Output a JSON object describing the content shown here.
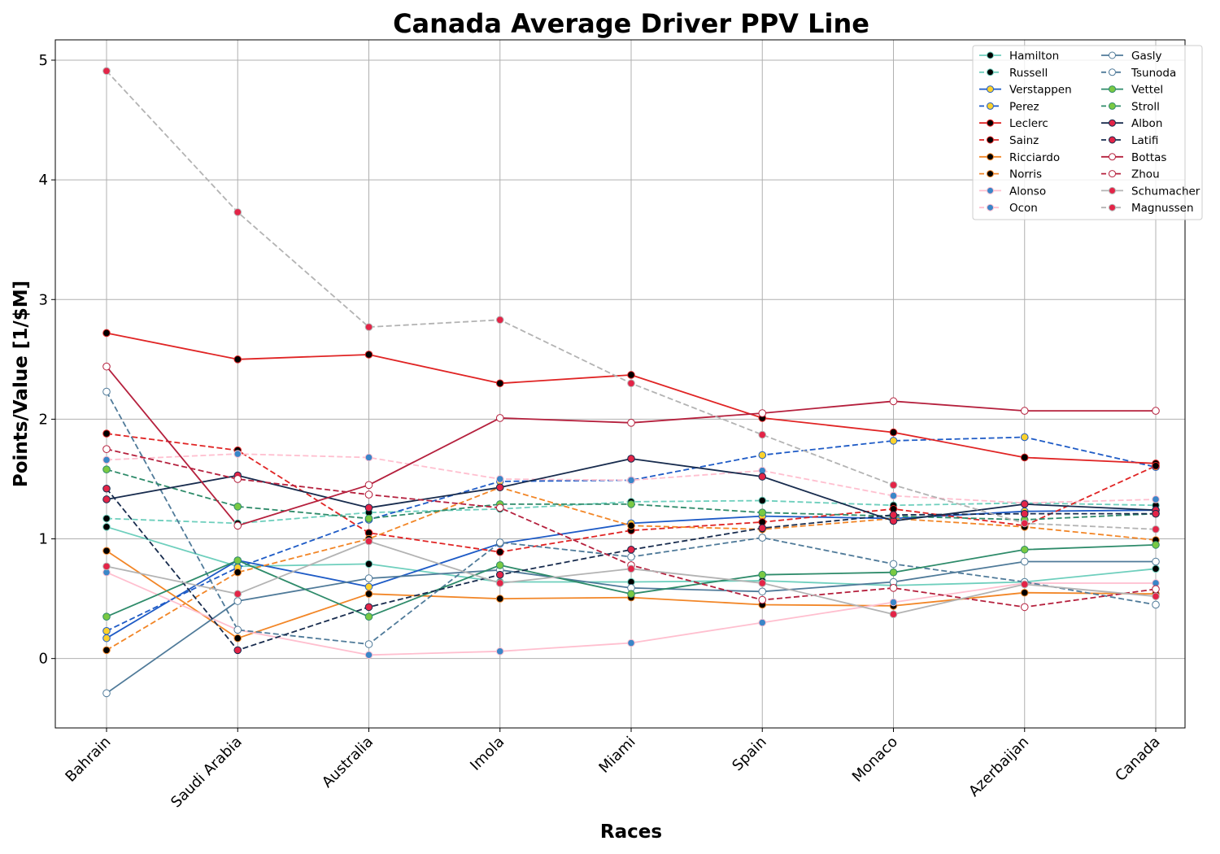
{
  "chart_data": {
    "type": "line",
    "title": "Canada Average Driver PPV Line",
    "xlabel": "Races",
    "ylabel": "Points/Value [1/$M]",
    "categories": [
      "Bahrain",
      "Saudi Arabia",
      "Australia",
      "Imola",
      "Miami",
      "Spain",
      "Monaco",
      "Azerbaijan",
      "Canada"
    ],
    "ylim": [
      -0.58,
      5.17
    ],
    "yticks": [
      0,
      1,
      2,
      3,
      4,
      5
    ],
    "grid": true,
    "legend_position": "top-right",
    "series": [
      {
        "name": "Hamilton",
        "color": "#6ecfbd",
        "marker_fill": "#000000",
        "dash": false,
        "values": [
          1.1,
          0.77,
          0.79,
          0.64,
          0.64,
          0.65,
          0.61,
          0.64,
          0.75
        ]
      },
      {
        "name": "Russell",
        "color": "#6ecfbd",
        "marker_fill": "#000000",
        "dash": true,
        "values": [
          1.17,
          1.13,
          1.22,
          1.25,
          1.31,
          1.32,
          1.28,
          1.3,
          1.28
        ]
      },
      {
        "name": "Verstappen",
        "color": "#1e5bc6",
        "marker_fill": "#fcd12c",
        "dash": false,
        "values": [
          0.17,
          0.82,
          0.6,
          0.96,
          1.13,
          1.19,
          1.17,
          1.23,
          1.24
        ]
      },
      {
        "name": "Perez",
        "color": "#1e5bc6",
        "marker_fill": "#fcd12c",
        "dash": true,
        "values": [
          0.23,
          0.76,
          1.16,
          1.48,
          1.49,
          1.7,
          1.82,
          1.85,
          1.6
        ]
      },
      {
        "name": "Leclerc",
        "color": "#e02424",
        "marker_fill": "#000000",
        "dash": false,
        "values": [
          2.72,
          2.5,
          2.54,
          2.3,
          2.37,
          2.01,
          1.89,
          1.68,
          1.63
        ]
      },
      {
        "name": "Sainz",
        "color": "#e02424",
        "marker_fill": "#000000",
        "dash": true,
        "values": [
          1.88,
          1.74,
          1.05,
          0.89,
          1.07,
          1.14,
          1.25,
          1.11,
          1.61
        ]
      },
      {
        "name": "Ricciardo",
        "color": "#f28627",
        "marker_fill": "#000000",
        "dash": false,
        "values": [
          0.9,
          0.17,
          0.54,
          0.5,
          0.51,
          0.45,
          0.44,
          0.55,
          0.54
        ]
      },
      {
        "name": "Norris",
        "color": "#f28627",
        "marker_fill": "#000000",
        "dash": true,
        "values": [
          0.07,
          0.72,
          1.0,
          1.43,
          1.11,
          1.08,
          1.17,
          1.1,
          0.99
        ]
      },
      {
        "name": "Alonso",
        "color": "#ffbfcf",
        "marker_fill": "#3a86c8",
        "dash": false,
        "values": [
          0.72,
          0.24,
          0.03,
          0.06,
          0.13,
          0.3,
          0.47,
          0.63,
          0.63
        ]
      },
      {
        "name": "Ocon",
        "color": "#ffbfcf",
        "marker_fill": "#3a86c8",
        "dash": true,
        "values": [
          1.66,
          1.71,
          1.68,
          1.5,
          1.49,
          1.57,
          1.36,
          1.3,
          1.33
        ]
      },
      {
        "name": "Gasly",
        "color": "#4f7a99",
        "marker_fill": "#ffffff",
        "dash": false,
        "values": [
          -0.29,
          0.48,
          0.67,
          0.74,
          0.59,
          0.56,
          0.64,
          0.81,
          0.81
        ]
      },
      {
        "name": "Tsunoda",
        "color": "#4f7a99",
        "marker_fill": "#ffffff",
        "dash": true,
        "values": [
          2.23,
          0.24,
          0.12,
          0.97,
          0.85,
          1.01,
          0.79,
          0.64,
          0.45
        ]
      },
      {
        "name": "Vettel",
        "color": "#2e8b6a",
        "marker_fill": "#7ac943",
        "dash": false,
        "values": [
          0.35,
          0.82,
          0.35,
          0.78,
          0.54,
          0.7,
          0.72,
          0.91,
          0.95
        ]
      },
      {
        "name": "Stroll",
        "color": "#2e8b6a",
        "marker_fill": "#7ac943",
        "dash": true,
        "values": [
          1.58,
          1.27,
          1.17,
          1.29,
          1.29,
          1.22,
          1.19,
          1.16,
          1.21
        ]
      },
      {
        "name": "Albon",
        "color": "#182c4e",
        "marker_fill": "#e32447",
        "dash": false,
        "values": [
          1.33,
          1.53,
          1.26,
          1.43,
          1.67,
          1.52,
          1.15,
          1.29,
          1.24
        ]
      },
      {
        "name": "Latifi",
        "color": "#182c4e",
        "marker_fill": "#e32447",
        "dash": true,
        "values": [
          1.42,
          0.07,
          0.43,
          0.7,
          0.91,
          1.09,
          1.2,
          1.21,
          1.21
        ]
      },
      {
        "name": "Bottas",
        "color": "#b5203d",
        "marker_fill": "#ffffff",
        "dash": false,
        "values": [
          2.44,
          1.11,
          1.45,
          2.01,
          1.97,
          2.05,
          2.15,
          2.07,
          2.07
        ]
      },
      {
        "name": "Zhou",
        "color": "#b5203d",
        "marker_fill": "#ffffff",
        "dash": true,
        "values": [
          1.75,
          1.5,
          1.37,
          1.26,
          0.78,
          0.49,
          0.59,
          0.43,
          0.58
        ]
      },
      {
        "name": "Schumacher",
        "color": "#b3b3b3",
        "marker_fill": "#e32447",
        "dash": false,
        "values": [
          0.77,
          0.54,
          0.98,
          0.63,
          0.75,
          0.63,
          0.37,
          0.62,
          0.52
        ]
      },
      {
        "name": "Magnussen",
        "color": "#b3b3b3",
        "marker_fill": "#e32447",
        "dash": true,
        "values": [
          4.91,
          3.73,
          2.77,
          2.83,
          2.3,
          1.87,
          1.45,
          1.13,
          1.08
        ]
      }
    ]
  }
}
